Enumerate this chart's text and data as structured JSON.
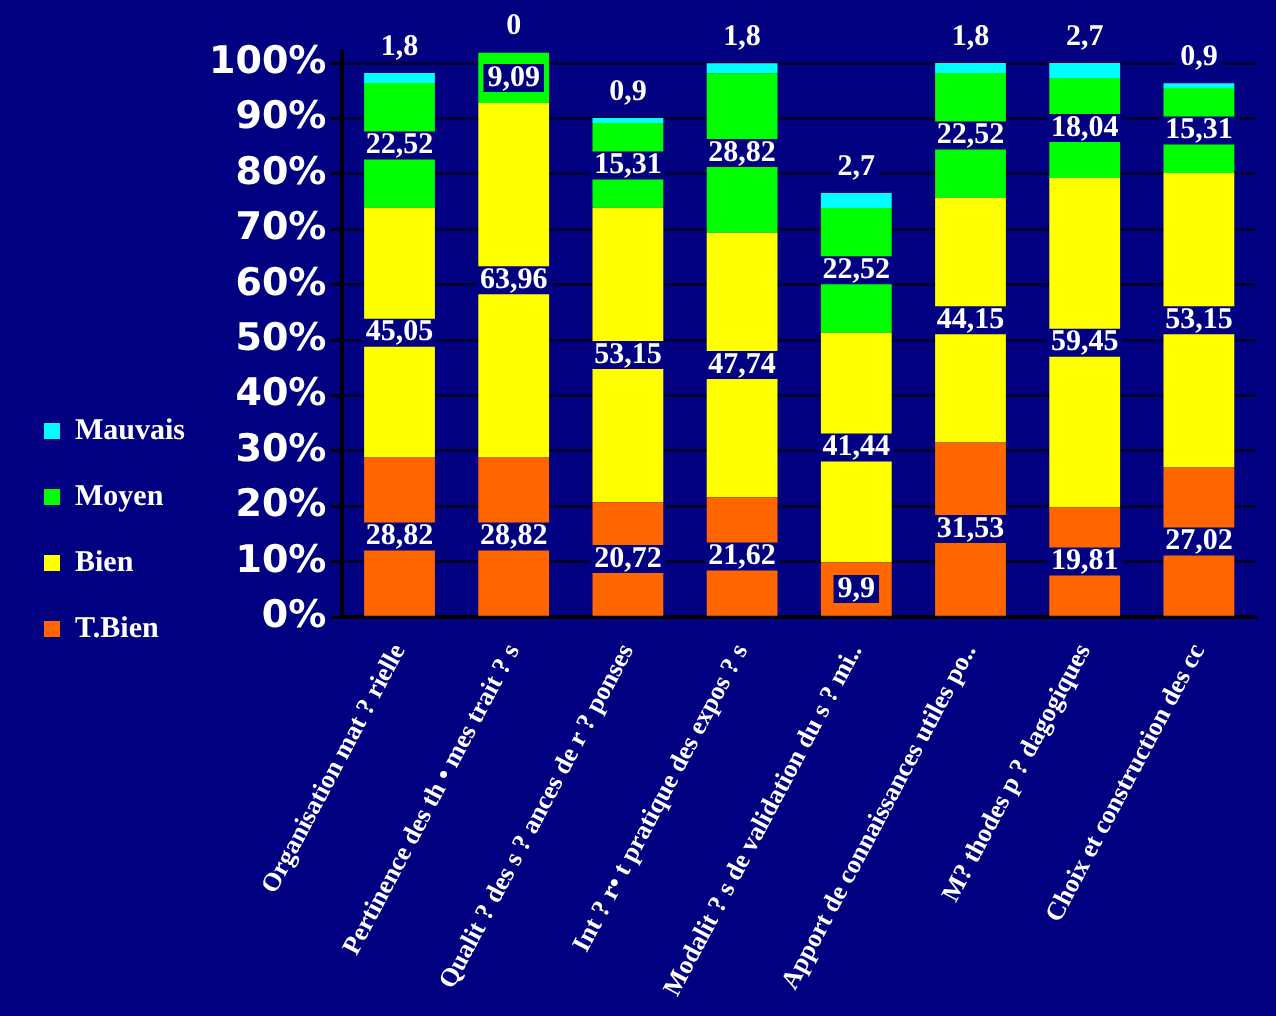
{
  "chart_data": {
    "type": "bar",
    "stacked": true,
    "categories": [
      "Organisation mat ? rielle",
      "Pertinence des th • mes trait ? s",
      "Qualit ? des s ? ances de r ? ponses",
      "Int ? r• t pratique des expos ? s",
      "Modalit ? s de validation du s ? mi..",
      "Apport de connaissances utiles po..",
      "M? thodes p ? dagogiques",
      "Choix et construction des cc"
    ],
    "series": [
      {
        "name": "T.Bien",
        "color": "#ff6600",
        "values": [
          28.82,
          28.82,
          20.72,
          21.62,
          9.9,
          31.53,
          19.81,
          27.02
        ]
      },
      {
        "name": "Bien",
        "color": "#ffff00",
        "values": [
          45.05,
          63.96,
          53.15,
          47.74,
          41.44,
          44.15,
          59.45,
          53.15
        ]
      },
      {
        "name": "Moyen",
        "color": "#00ff00",
        "values": [
          22.52,
          9.09,
          15.31,
          28.82,
          22.52,
          22.52,
          18.04,
          15.31
        ]
      },
      {
        "name": "Mauvais",
        "color": "#00ffff",
        "values": [
          1.8,
          0,
          0.9,
          1.8,
          2.7,
          1.8,
          2.7,
          0.9
        ]
      }
    ],
    "value_labels": [
      [
        "28,82",
        "28,82",
        "20,72",
        "21,62",
        "9,9",
        "31,53",
        "19,81",
        "27,02"
      ],
      [
        "45,05",
        "63,96",
        "53,15",
        "47,74",
        "41,44",
        "44,15",
        "59,45",
        "53,15"
      ],
      [
        "22,52",
        "9,09",
        "15,31",
        "28,82",
        "22,52",
        "22,52",
        "18,04",
        "15,31"
      ],
      [
        "1,8",
        "0",
        "0,9",
        "1,8",
        "2,7",
        "1,8",
        "2,7",
        "0,9"
      ]
    ],
    "ylim": [
      0,
      102
    ],
    "yticks": [
      {
        "value": 0,
        "label": "0%"
      },
      {
        "value": 10,
        "label": "10%"
      },
      {
        "value": 20,
        "label": "20%"
      },
      {
        "value": 30,
        "label": "30%"
      },
      {
        "value": 40,
        "label": "40%"
      },
      {
        "value": 50,
        "label": "50%"
      },
      {
        "value": 60,
        "label": "60%"
      },
      {
        "value": 70,
        "label": "70%"
      },
      {
        "value": 80,
        "label": "80%"
      },
      {
        "value": 90,
        "label": "90%"
      },
      {
        "value": 100,
        "label": "100%"
      }
    ],
    "grid": "y",
    "legend": "left"
  }
}
